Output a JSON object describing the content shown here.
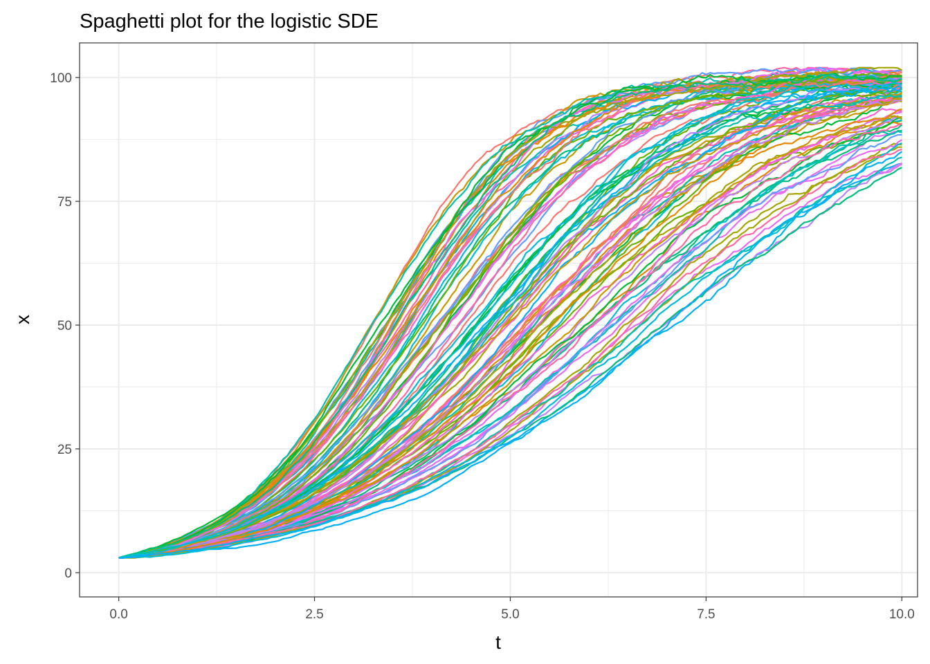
{
  "chart_data": {
    "type": "line",
    "title": "Spaghetti plot for the logistic SDE",
    "xlabel": "t",
    "ylabel": "x",
    "xlim": [
      -0.5,
      10.2
    ],
    "ylim": [
      -4.9,
      107
    ],
    "x_ticks": [
      0,
      2.5,
      5,
      7.5,
      10
    ],
    "x_tick_labels": [
      "0.0",
      "2.5",
      "5.0",
      "7.5",
      "10.0"
    ],
    "y_ticks": [
      0,
      25,
      50,
      75,
      100
    ],
    "y_tick_labels": [
      "0",
      "25",
      "50",
      "75",
      "100"
    ],
    "grid": true,
    "legend": "none",
    "model": {
      "x0": 3,
      "capacity": 100,
      "t_end": 10,
      "dt": 0.05,
      "path_count": 100,
      "midpoint_range": [
        3.2,
        6.9
      ]
    },
    "palette": [
      "#F8766D",
      "#E58700",
      "#C99800",
      "#A3A500",
      "#6BB100",
      "#00BA38",
      "#00BF7D",
      "#00C0AF",
      "#00BCD8",
      "#00B0F6",
      "#619CFF",
      "#B983FF",
      "#E76BF3",
      "#FD61D1",
      "#FF67A4"
    ]
  }
}
